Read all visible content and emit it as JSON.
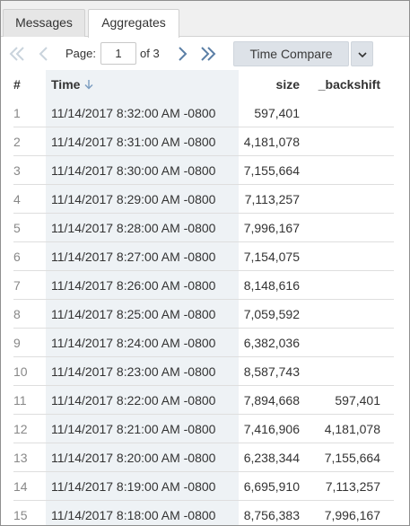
{
  "tabs": [
    {
      "label": "Messages"
    },
    {
      "label": "Aggregates"
    }
  ],
  "toolbar": {
    "page_label": "Page:",
    "page_value": "1",
    "of_label": "of 3",
    "time_compare_label": "Time Compare"
  },
  "table": {
    "columns": [
      "#",
      "Time",
      "size",
      "_backshift"
    ],
    "rows": [
      {
        "n": "1",
        "time": "11/14/2017 8:32:00 AM -0800",
        "size": "597,401",
        "backshift": ""
      },
      {
        "n": "2",
        "time": "11/14/2017 8:31:00 AM -0800",
        "size": "4,181,078",
        "backshift": ""
      },
      {
        "n": "3",
        "time": "11/14/2017 8:30:00 AM -0800",
        "size": "7,155,664",
        "backshift": ""
      },
      {
        "n": "4",
        "time": "11/14/2017 8:29:00 AM -0800",
        "size": "7,113,257",
        "backshift": ""
      },
      {
        "n": "5",
        "time": "11/14/2017 8:28:00 AM -0800",
        "size": "7,996,167",
        "backshift": ""
      },
      {
        "n": "6",
        "time": "11/14/2017 8:27:00 AM -0800",
        "size": "7,154,075",
        "backshift": ""
      },
      {
        "n": "7",
        "time": "11/14/2017 8:26:00 AM -0800",
        "size": "8,148,616",
        "backshift": ""
      },
      {
        "n": "8",
        "time": "11/14/2017 8:25:00 AM -0800",
        "size": "7,059,592",
        "backshift": ""
      },
      {
        "n": "9",
        "time": "11/14/2017 8:24:00 AM -0800",
        "size": "6,382,036",
        "backshift": ""
      },
      {
        "n": "10",
        "time": "11/14/2017 8:23:00 AM -0800",
        "size": "8,587,743",
        "backshift": ""
      },
      {
        "n": "11",
        "time": "11/14/2017 8:22:00 AM -0800",
        "size": "7,894,668",
        "backshift": "597,401"
      },
      {
        "n": "12",
        "time": "11/14/2017 8:21:00 AM -0800",
        "size": "7,416,906",
        "backshift": "4,181,078"
      },
      {
        "n": "13",
        "time": "11/14/2017 8:20:00 AM -0800",
        "size": "6,238,344",
        "backshift": "7,155,664"
      },
      {
        "n": "14",
        "time": "11/14/2017 8:19:00 AM -0800",
        "size": "6,695,910",
        "backshift": "7,113,257"
      },
      {
        "n": "15",
        "time": "11/14/2017 8:18:00 AM -0800",
        "size": "8,756,383",
        "backshift": "7,996,167"
      }
    ]
  },
  "icons": {
    "first": "double-chevron-left-icon",
    "prev": "chevron-left-icon",
    "next": "chevron-right-icon",
    "last": "double-chevron-right-icon",
    "sort": "arrow-down-icon",
    "dropdown": "chevron-down-icon"
  },
  "colors": {
    "nav_disabled": "#c9d3dc",
    "nav_enabled": "#5b7fa6",
    "button_bg": "#dde2e8",
    "time_column_bg": "#eef2f5"
  }
}
